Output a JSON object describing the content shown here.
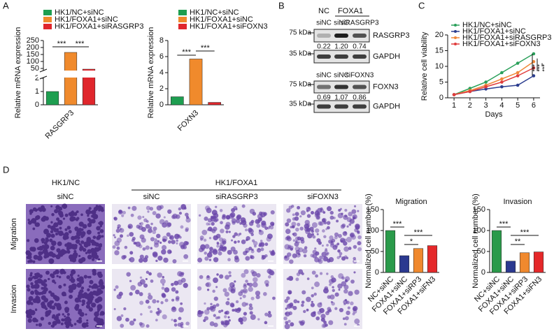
{
  "panel_labels": [
    "A",
    "B",
    "C",
    "D"
  ],
  "chart_data": [
    {
      "type": "bar",
      "ylabel": "Relative mRNA expression",
      "categories": [
        "RASGRP3"
      ],
      "series": [
        {
          "name": "HK1/NC+siNC",
          "color": "#1e9e50",
          "values": [
            1.0
          ]
        },
        {
          "name": "HK1/FOXA1+siNC",
          "color": "#f08a2c",
          "values": [
            165
          ]
        },
        {
          "name": "HK1/FOXA1+siRASGRP3",
          "color": "#e0262c",
          "values": [
            45
          ]
        }
      ],
      "ylim": [
        0,
        250
      ],
      "ybreak": [
        2,
        40
      ],
      "yticks": [
        0,
        1,
        2,
        50,
        100,
        150,
        200,
        250
      ],
      "annotations": [
        "***",
        "***"
      ]
    },
    {
      "type": "bar",
      "ylabel": "Relative mRNA expression",
      "categories": [
        "FOXN3"
      ],
      "series": [
        {
          "name": "HK1/NC+siNC",
          "color": "#1e9e50",
          "values": [
            1.0
          ]
        },
        {
          "name": "HK1/FOXA1+siNC",
          "color": "#f08a2c",
          "values": [
            5.7
          ]
        },
        {
          "name": "HK1/FOXA1+siFOXN3",
          "color": "#e0262c",
          "values": [
            0.3
          ]
        }
      ],
      "ylim": [
        0,
        8
      ],
      "yticks": [
        0,
        2,
        4,
        6,
        8
      ],
      "annotations": [
        "***",
        "***"
      ]
    },
    {
      "type": "line",
      "xlabel": "Days",
      "ylabel": "Relative cell viability",
      "x": [
        1,
        2,
        3,
        4,
        5,
        6
      ],
      "series": [
        {
          "name": "HK1/NC+siNC",
          "color": "#2aa05a",
          "values": [
            1,
            3,
            5,
            8,
            11,
            14
          ]
        },
        {
          "name": "HK1/FOXA1+siNC",
          "color": "#2c3e8f",
          "values": [
            1,
            2,
            2.8,
            3.5,
            4,
            7
          ]
        },
        {
          "name": "HK1/FOXA1+siRASGRP3",
          "color": "#f0883a",
          "values": [
            1,
            2.3,
            4,
            6,
            8,
            11.5
          ]
        },
        {
          "name": "HK1/FOXA1+siFOXN3",
          "color": "#e03c3c",
          "values": [
            1,
            2,
            3.5,
            5,
            7,
            9.5
          ]
        }
      ],
      "xlim": [
        0.6,
        6.4
      ],
      "xticks": [
        1,
        2,
        3,
        4,
        5,
        6
      ],
      "ylim": [
        0,
        20
      ],
      "yticks": [
        0,
        5,
        10,
        15,
        20
      ],
      "annotations": [
        "***",
        "***",
        "***"
      ]
    },
    {
      "type": "bar",
      "title": "Migration",
      "ylabel": "Normalized cell number (%)",
      "categories": [
        "NC+siNC",
        "FOXA1+siNC",
        "FOXA1+siRP3",
        "FOXA1+siFN3"
      ],
      "values": [
        100,
        40,
        57,
        64
      ],
      "colors": [
        "#2a9a4a",
        "#2b3990",
        "#f0892e",
        "#e5282a"
      ],
      "ylim": [
        0,
        150
      ],
      "yticks": [
        0,
        50,
        100,
        150
      ],
      "annotations": [
        "***",
        "*",
        "***"
      ]
    },
    {
      "type": "bar",
      "title": "Invasion",
      "ylabel": "Normalized cell number (%)",
      "categories": [
        "NC+siNC",
        "FOXA1+siNC",
        "FOXA1+siRP3",
        "FOXA1+siFN3"
      ],
      "values": [
        100,
        27,
        47,
        49
      ],
      "colors": [
        "#2a9a4a",
        "#2b3990",
        "#f0892e",
        "#e5282a"
      ],
      "ylim": [
        0,
        150
      ],
      "yticks": [
        0,
        50,
        100,
        150
      ],
      "annotations": [
        "***",
        "**",
        "***"
      ]
    }
  ],
  "western_blot": {
    "groups": [
      "NC",
      "FOXA1"
    ],
    "blots": [
      {
        "lanes": [
          "siNC",
          "siNC",
          "siRASGRP3"
        ],
        "rows": [
          {
            "marker": "75 kDa",
            "label": "RASGRP3",
            "quantification": [
              "0.22",
              "1.20",
              "0.74"
            ]
          },
          {
            "marker": "35 kDa",
            "label": "GAPDH"
          }
        ]
      },
      {
        "lanes": [
          "siNC",
          "siNC",
          "siFOXN3"
        ],
        "rows": [
          {
            "marker": "75 kDa",
            "label": "FOXN3",
            "quantification": [
              "0.69",
              "1.07",
              "0.86"
            ]
          },
          {
            "marker": "35 kDa",
            "label": "GAPDH"
          }
        ]
      }
    ]
  },
  "transwell": {
    "groups": [
      "HK1/NC",
      "HK1/FOXA1"
    ],
    "columns": [
      "siNC",
      "siNC",
      "siRASGRP3",
      "siFOXN3"
    ],
    "rows": [
      "Migration",
      "Invasion"
    ]
  }
}
